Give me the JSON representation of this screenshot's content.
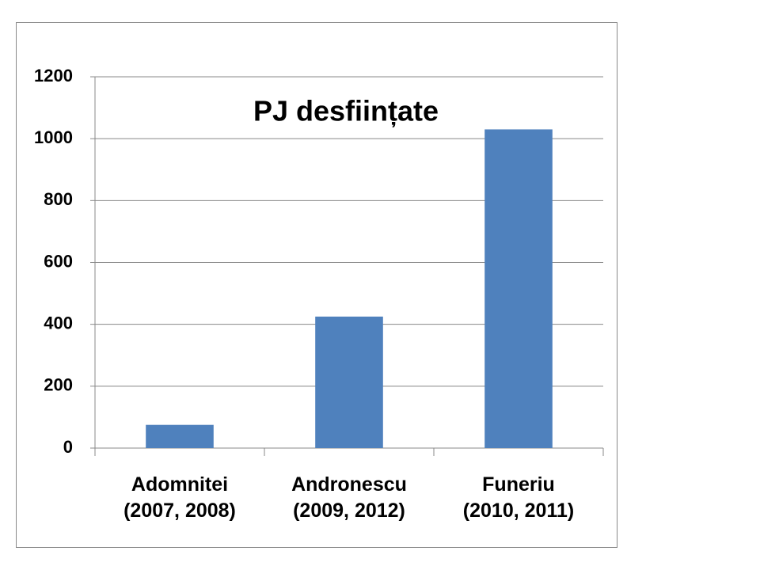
{
  "chart_data": {
    "type": "bar",
    "title": "PJ desființate",
    "categories": [
      "Adomnitei\n(2007, 2008)",
      "Andronescu\n(2009, 2012)",
      "Funeriu\n(2010, 2011)"
    ],
    "values": [
      75,
      425,
      1030
    ],
    "color": "#4f81bd",
    "ylim": [
      0,
      1200
    ],
    "yticks": [
      0,
      200,
      400,
      600,
      800,
      1000,
      1200
    ],
    "grid": true
  }
}
